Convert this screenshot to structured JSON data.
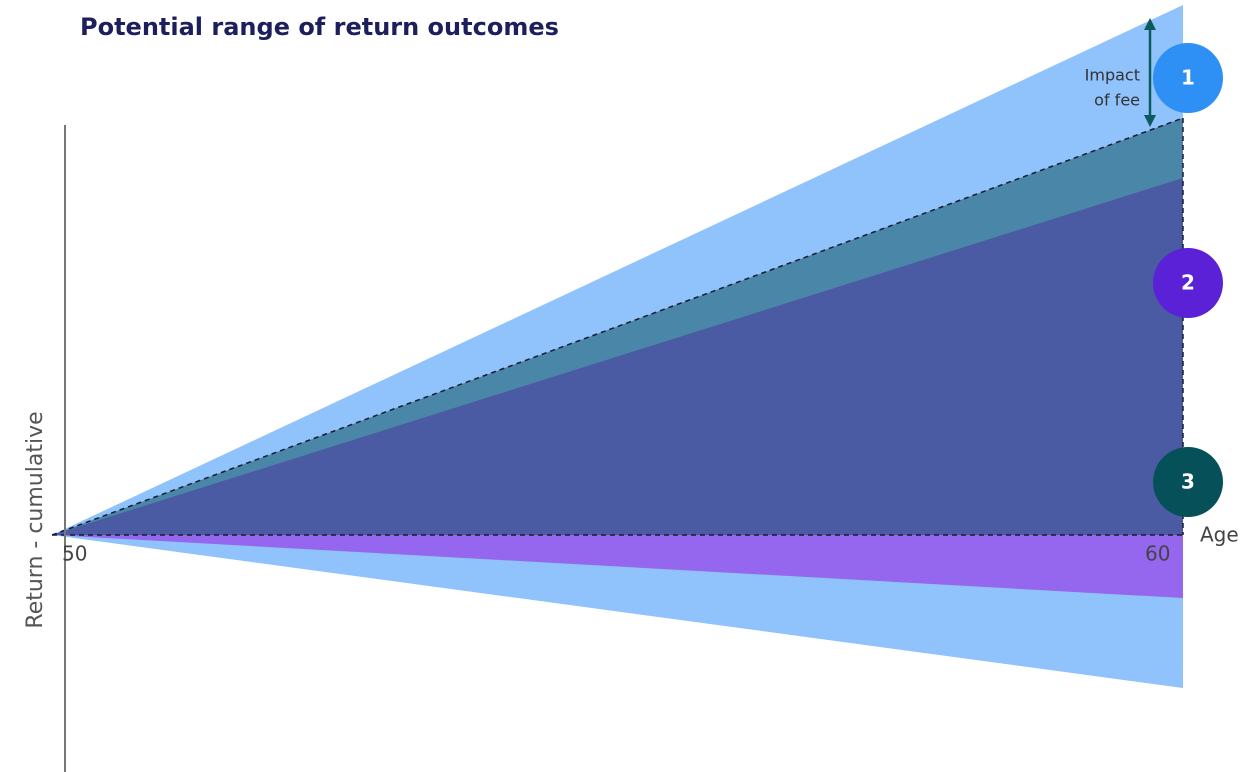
{
  "title": "Potential range of return outcomes",
  "y_axis_label": "Return - cumulative",
  "x_axis": {
    "start_label": "50",
    "end_label": "60",
    "name": "Age"
  },
  "annotation": [
    "Impact",
    "of fee"
  ],
  "badges": [
    "1",
    "2",
    "3"
  ]
}
